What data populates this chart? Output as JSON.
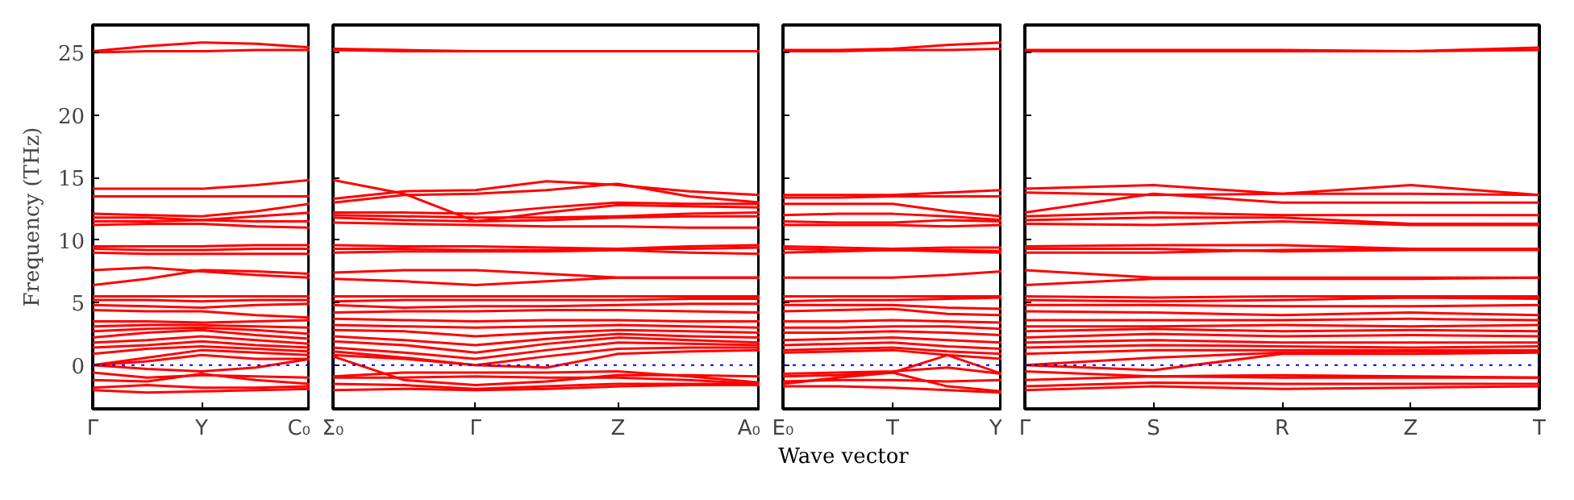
{
  "chart_data": [
    {
      "type": "line",
      "ylabel": "Frequency (THz)",
      "color": "#ff0000",
      "ylim": [
        -3.5,
        27.2
      ],
      "yticks": [
        0,
        5,
        10,
        15,
        20,
        25
      ],
      "categories": [
        "Γ",
        null,
        "Y",
        null,
        "C₀"
      ],
      "marker": "none",
      "line_style": "solid",
      "ref_lines": [
        {
          "axis": "y",
          "value": 0,
          "label": null,
          "color": "#0000ff",
          "line_style": "dotted"
        }
      ],
      "series": [
        {
          "values": [
            25.1,
            25.5,
            25.8,
            25.7,
            25.4
          ]
        },
        {
          "values": [
            25.0,
            25.1,
            25.1,
            25.2,
            25.2
          ]
        },
        {
          "values": [
            14.1,
            14.1,
            14.1,
            14.4,
            14.8
          ]
        },
        {
          "values": [
            13.5,
            13.5,
            13.5,
            13.5,
            13.5
          ]
        },
        {
          "values": [
            12.1,
            12.0,
            11.9,
            12.3,
            12.9
          ]
        },
        {
          "values": [
            11.8,
            11.8,
            11.6,
            11.9,
            12.2
          ]
        },
        {
          "values": [
            11.5,
            11.5,
            11.6,
            11.5,
            11.5
          ]
        },
        {
          "values": [
            11.2,
            11.3,
            11.3,
            11.1,
            11.0
          ]
        },
        {
          "values": [
            9.5,
            9.5,
            9.5,
            9.6,
            9.6
          ]
        },
        {
          "values": [
            9.3,
            9.2,
            9.2,
            9.3,
            9.3
          ]
        },
        {
          "values": [
            9.0,
            8.9,
            8.9,
            8.9,
            8.9
          ]
        },
        {
          "values": [
            7.6,
            7.8,
            7.5,
            7.2,
            7.0
          ]
        },
        {
          "values": [
            6.4,
            6.9,
            7.6,
            7.5,
            7.3
          ]
        },
        {
          "values": [
            5.5,
            5.5,
            5.5,
            5.5,
            5.5
          ]
        },
        {
          "values": [
            5.2,
            5.2,
            5.1,
            5.2,
            5.2
          ]
        },
        {
          "values": [
            4.8,
            4.7,
            4.6,
            4.8,
            4.9
          ]
        },
        {
          "values": [
            4.4,
            4.3,
            4.3,
            4.0,
            3.8
          ]
        },
        {
          "values": [
            3.5,
            3.5,
            3.4,
            3.5,
            3.6
          ]
        },
        {
          "values": [
            3.1,
            3.2,
            3.2,
            3.1,
            3.0
          ]
        },
        {
          "values": [
            2.7,
            2.9,
            3.0,
            2.8,
            2.5
          ]
        },
        {
          "values": [
            2.2,
            2.6,
            2.8,
            2.4,
            2.1
          ]
        },
        {
          "values": [
            1.8,
            2.0,
            2.3,
            2.0,
            1.7
          ]
        },
        {
          "values": [
            1.4,
            1.6,
            1.9,
            1.6,
            1.4
          ]
        },
        {
          "values": [
            0.9,
            1.3,
            1.5,
            1.3,
            1.1
          ]
        },
        {
          "values": [
            0.0,
            0.6,
            1.2,
            1.0,
            0.8
          ]
        },
        {
          "values": [
            0.0,
            0.3,
            0.8,
            0.5,
            0.5
          ]
        },
        {
          "values": [
            0.0,
            -0.3,
            -0.5,
            -0.2,
            0.5
          ]
        },
        {
          "values": [
            -0.6,
            -1.0,
            -0.8,
            -0.9,
            -1.0
          ]
        },
        {
          "values": [
            -1.2,
            -1.3,
            -0.7,
            -1.2,
            -1.5
          ]
        },
        {
          "values": [
            -1.8,
            -1.6,
            -1.8,
            -1.8,
            -1.7
          ]
        },
        {
          "values": [
            -2.0,
            -2.2,
            -2.1,
            -2.0,
            -1.9
          ]
        }
      ]
    },
    {
      "type": "line",
      "xlabel": "Wave vector",
      "color": "#ff0000",
      "ylim": [
        -3.5,
        27.2
      ],
      "yticks": [
        0,
        5,
        10,
        15,
        20,
        25
      ],
      "tick_labels": "x",
      "categories": [
        "Σ₀",
        null,
        "Γ",
        null,
        "Z",
        null,
        "A₀"
      ],
      "marker": "none",
      "line_style": "solid",
      "ref_lines": [
        {
          "axis": "y",
          "value": 0,
          "label": null,
          "color": "#0000ff",
          "line_style": "dotted"
        }
      ],
      "series": [
        {
          "values": [
            25.3,
            25.2,
            25.1,
            25.1,
            25.1,
            25.1,
            25.1
          ]
        },
        {
          "values": [
            25.2,
            25.1,
            25.1,
            25.1,
            25.1,
            25.1,
            25.1
          ]
        },
        {
          "values": [
            14.8,
            13.7,
            11.5,
            12.2,
            12.8,
            12.7,
            12.6
          ]
        },
        {
          "values": [
            13.3,
            13.9,
            14.0,
            14.7,
            14.4,
            13.9,
            13.6
          ]
        },
        {
          "values": [
            13.0,
            13.6,
            13.7,
            14.0,
            14.5,
            13.5,
            13.0
          ]
        },
        {
          "values": [
            12.2,
            12.2,
            12.1,
            12.6,
            13.0,
            12.9,
            12.9
          ]
        },
        {
          "values": [
            12.0,
            11.9,
            11.8,
            11.8,
            11.9,
            12.1,
            12.2
          ]
        },
        {
          "values": [
            11.8,
            11.6,
            11.5,
            11.6,
            11.8,
            11.9,
            11.9
          ]
        },
        {
          "values": [
            11.4,
            11.3,
            11.2,
            11.1,
            11.1,
            11.0,
            11.0
          ]
        },
        {
          "values": [
            9.6,
            9.5,
            9.5,
            9.4,
            9.3,
            9.5,
            9.6
          ]
        },
        {
          "values": [
            9.3,
            9.3,
            9.2,
            9.2,
            9.3,
            9.3,
            9.4
          ]
        },
        {
          "values": [
            9.0,
            9.1,
            9.1,
            9.1,
            9.2,
            9.0,
            8.9
          ]
        },
        {
          "values": [
            7.4,
            7.6,
            7.6,
            7.3,
            7.0,
            7.0,
            7.0
          ]
        },
        {
          "values": [
            6.9,
            6.7,
            6.4,
            6.7,
            7.0,
            7.0,
            7.0
          ]
        },
        {
          "values": [
            5.5,
            5.5,
            5.5,
            5.5,
            5.5,
            5.5,
            5.5
          ]
        },
        {
          "values": [
            5.1,
            5.2,
            5.2,
            5.2,
            5.2,
            5.3,
            5.3
          ]
        },
        {
          "values": [
            4.8,
            4.6,
            4.7,
            4.7,
            4.8,
            4.9,
            4.9
          ]
        },
        {
          "values": [
            4.2,
            4.3,
            4.3,
            4.4,
            4.4,
            4.3,
            4.2
          ]
        },
        {
          "values": [
            3.7,
            3.6,
            3.5,
            3.6,
            3.6,
            3.5,
            3.5
          ]
        },
        {
          "values": [
            3.2,
            3.1,
            3.0,
            3.1,
            3.2,
            3.1,
            3.0
          ]
        },
        {
          "values": [
            2.8,
            2.7,
            2.3,
            2.6,
            2.8,
            2.7,
            2.6
          ]
        },
        {
          "values": [
            2.3,
            2.0,
            1.6,
            2.1,
            2.5,
            2.3,
            2.2
          ]
        },
        {
          "values": [
            1.9,
            1.6,
            1.0,
            1.7,
            2.2,
            2.0,
            1.8
          ]
        },
        {
          "values": [
            1.4,
            1.0,
            0.5,
            1.2,
            1.8,
            1.7,
            1.6
          ]
        },
        {
          "values": [
            1.1,
            0.6,
            0.0,
            0.7,
            1.3,
            1.4,
            1.4
          ]
        },
        {
          "values": [
            0.8,
            0.5,
            0.0,
            -0.2,
            0.9,
            1.1,
            1.2
          ]
        },
        {
          "values": [
            0.7,
            -1.2,
            -1.6,
            -1.3,
            -0.8,
            -0.8,
            -0.9
          ]
        },
        {
          "values": [
            -0.9,
            -0.6,
            -0.6,
            -0.6,
            -0.5,
            -0.9,
            -1.4
          ]
        },
        {
          "values": [
            -1.0,
            -1.0,
            -0.9,
            -1.0,
            -1.0,
            -1.2,
            -1.5
          ]
        },
        {
          "values": [
            -1.5,
            -1.6,
            -1.9,
            -1.7,
            -1.5,
            -1.5,
            -1.5
          ]
        },
        {
          "values": [
            -2.0,
            -1.9,
            -2.0,
            -1.9,
            -1.7,
            -1.6,
            -1.6
          ]
        }
      ]
    },
    {
      "type": "line",
      "color": "#ff0000",
      "ylim": [
        -3.5,
        27.2
      ],
      "yticks": [
        0,
        5,
        10,
        15,
        20,
        25
      ],
      "tick_labels": "x",
      "categories": [
        "E₀",
        null,
        "T",
        null,
        "Y"
      ],
      "marker": "none",
      "line_style": "solid",
      "ref_lines": [
        {
          "axis": "y",
          "value": 0,
          "label": null,
          "color": "#0000ff",
          "line_style": "dotted"
        }
      ],
      "series": [
        {
          "values": [
            25.2,
            25.2,
            25.3,
            25.6,
            25.8
          ]
        },
        {
          "values": [
            25.1,
            25.1,
            25.2,
            25.2,
            25.3
          ]
        },
        {
          "values": [
            13.6,
            13.6,
            13.6,
            13.8,
            14.0
          ]
        },
        {
          "values": [
            13.4,
            13.4,
            13.5,
            13.5,
            13.5
          ]
        },
        {
          "values": [
            12.9,
            12.9,
            12.9,
            12.3,
            11.9
          ]
        },
        {
          "values": [
            12.0,
            12.1,
            12.1,
            11.9,
            11.6
          ]
        },
        {
          "values": [
            11.5,
            11.4,
            11.4,
            11.6,
            11.5
          ]
        },
        {
          "values": [
            11.2,
            11.2,
            11.2,
            11.1,
            11.2
          ]
        },
        {
          "values": [
            9.5,
            9.4,
            9.3,
            9.4,
            9.4
          ]
        },
        {
          "values": [
            9.3,
            9.2,
            9.2,
            9.2,
            9.1
          ]
        },
        {
          "values": [
            9.0,
            9.1,
            9.2,
            9.1,
            9.0
          ]
        },
        {
          "values": [
            7.0,
            7.0,
            7.0,
            7.2,
            7.5
          ]
        },
        {
          "values": [
            5.5,
            5.5,
            5.5,
            5.5,
            5.5
          ]
        },
        {
          "values": [
            5.1,
            5.2,
            5.2,
            5.3,
            5.4
          ]
        },
        {
          "values": [
            4.8,
            4.8,
            4.8,
            4.6,
            4.5
          ]
        },
        {
          "values": [
            4.3,
            4.4,
            4.5,
            4.1,
            4.0
          ]
        },
        {
          "values": [
            3.5,
            3.5,
            3.6,
            3.5,
            3.4
          ]
        },
        {
          "values": [
            3.0,
            3.0,
            3.1,
            3.1,
            2.9
          ]
        },
        {
          "values": [
            2.6,
            2.6,
            2.7,
            2.6,
            2.4
          ]
        },
        {
          "values": [
            2.0,
            2.1,
            2.2,
            2.0,
            1.8
          ]
        },
        {
          "values": [
            1.6,
            1.7,
            1.8,
            1.5,
            1.3
          ]
        },
        {
          "values": [
            1.2,
            1.3,
            1.4,
            1.1,
            0.9
          ]
        },
        {
          "values": [
            1.0,
            1.1,
            1.2,
            0.8,
            0.5
          ]
        },
        {
          "values": [
            -0.9,
            -0.8,
            -0.6,
            0.8,
            -0.7
          ]
        },
        {
          "values": [
            -0.7,
            -0.6,
            -0.5,
            -0.2,
            -0.7
          ]
        },
        {
          "values": [
            -1.3,
            -1.2,
            -1.2,
            -1.3,
            -1.2
          ]
        },
        {
          "values": [
            -1.5,
            -1.0,
            -0.6,
            -1.7,
            -2.1
          ]
        },
        {
          "values": [
            -1.7,
            -1.7,
            -1.8,
            -2.0,
            -2.2
          ]
        }
      ]
    },
    {
      "type": "line",
      "color": "#ff0000",
      "ylim": [
        -3.5,
        27.2
      ],
      "yticks": [
        0,
        5,
        10,
        15,
        20,
        25
      ],
      "tick_labels": "x",
      "categories": [
        "Γ",
        "S",
        "R",
        "Z",
        "T"
      ],
      "marker": "none",
      "line_style": "solid",
      "ref_lines": [
        {
          "axis": "y",
          "value": 0,
          "label": null,
          "color": "#0000ff",
          "line_style": "dotted"
        }
      ],
      "series": [
        {
          "values": [
            25.2,
            25.2,
            25.2,
            25.1,
            25.4
          ]
        },
        {
          "values": [
            25.1,
            25.1,
            25.1,
            25.1,
            25.2
          ]
        },
        {
          "values": [
            14.1,
            14.4,
            13.7,
            14.4,
            13.6
          ]
        },
        {
          "values": [
            13.8,
            13.6,
            13.7,
            13.7,
            13.6
          ]
        },
        {
          "values": [
            12.2,
            13.7,
            13.0,
            13.0,
            13.0
          ]
        },
        {
          "values": [
            11.9,
            12.2,
            12.0,
            12.0,
            12.0
          ]
        },
        {
          "values": [
            11.6,
            11.8,
            11.8,
            11.3,
            11.3
          ]
        },
        {
          "values": [
            11.3,
            11.2,
            11.5,
            11.2,
            11.2
          ]
        },
        {
          "values": [
            9.5,
            9.6,
            9.6,
            9.3,
            9.3
          ]
        },
        {
          "values": [
            9.3,
            9.3,
            9.1,
            9.2,
            9.2
          ]
        },
        {
          "values": [
            9.0,
            9.0,
            9.2,
            9.3,
            9.3
          ]
        },
        {
          "values": [
            7.6,
            7.0,
            7.0,
            7.0,
            7.0
          ]
        },
        {
          "values": [
            6.4,
            6.9,
            6.9,
            6.9,
            7.0
          ]
        },
        {
          "values": [
            5.5,
            5.4,
            5.5,
            5.5,
            5.5
          ]
        },
        {
          "values": [
            5.2,
            5.1,
            5.2,
            5.4,
            5.3
          ]
        },
        {
          "values": [
            4.8,
            4.8,
            4.7,
            4.7,
            4.8
          ]
        },
        {
          "values": [
            4.3,
            4.2,
            4.0,
            4.2,
            4.0
          ]
        },
        {
          "values": [
            3.6,
            3.6,
            3.6,
            3.7,
            3.6
          ]
        },
        {
          "values": [
            3.1,
            3.1,
            3.2,
            3.1,
            3.2
          ]
        },
        {
          "values": [
            2.7,
            2.9,
            2.7,
            2.8,
            2.7
          ]
        },
        {
          "values": [
            2.2,
            2.5,
            2.3,
            2.4,
            2.3
          ]
        },
        {
          "values": [
            1.8,
            2.0,
            1.8,
            1.8,
            1.8
          ]
        },
        {
          "values": [
            1.4,
            1.6,
            1.5,
            1.4,
            1.5
          ]
        },
        {
          "values": [
            0.9,
            1.2,
            1.2,
            1.2,
            1.2
          ]
        },
        {
          "values": [
            0.0,
            0.6,
            1.0,
            1.1,
            1.1
          ]
        },
        {
          "values": [
            0.0,
            -0.4,
            0.9,
            0.9,
            1.0
          ]
        },
        {
          "values": [
            -0.5,
            -0.9,
            -0.8,
            -0.9,
            -1.0
          ]
        },
        {
          "values": [
            -1.2,
            -0.9,
            -1.0,
            -1.0,
            -1.0
          ]
        },
        {
          "values": [
            -1.7,
            -1.4,
            -1.5,
            -1.5,
            -1.5
          ]
        },
        {
          "values": [
            -2.0,
            -1.7,
            -1.9,
            -1.8,
            -1.7
          ]
        }
      ]
    }
  ]
}
